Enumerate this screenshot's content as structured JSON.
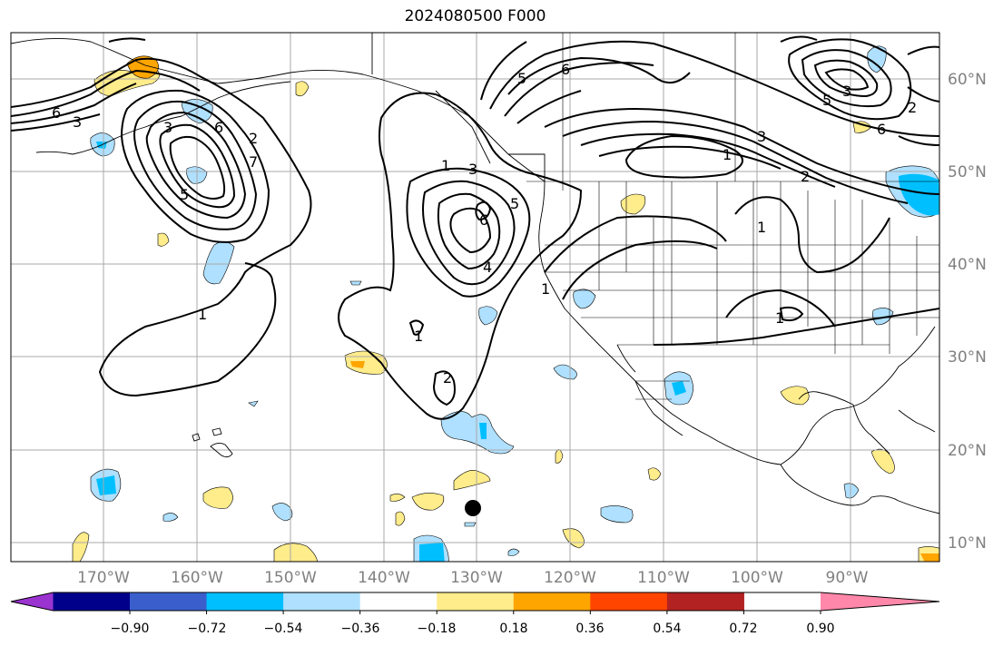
{
  "title": "2024080500 F000",
  "lon_labels": [
    "170°W",
    "160°W",
    "150°W",
    "140°W",
    "130°W",
    "120°W",
    "110°W",
    "100°W",
    "90°W"
  ],
  "lat_labels": [
    "60°N",
    "50°N",
    "40°N",
    "30°N",
    "20°N",
    "10°N"
  ],
  "colorbar": {
    "colors": [
      "#9a33d0",
      "#00008b",
      "#3a5fcd",
      "#00bfff",
      "#afe0ff",
      "#ffffff",
      "#ffec8b",
      "#ffa500",
      "#ff4500",
      "#b22222",
      "#ff88aa"
    ],
    "tick_labels": [
      "−0.90",
      "−0.72",
      "−0.54",
      "−0.36",
      "−0.18",
      "0.18",
      "0.36",
      "0.54",
      "0.72",
      "0.90"
    ]
  },
  "contour_labels": [
    "6",
    "3",
    "3",
    "6",
    "2",
    "7",
    "5",
    "1",
    "1",
    "3",
    "6",
    "4",
    "5",
    "1",
    "2",
    "1",
    "1",
    "1",
    "5",
    "6",
    "5",
    "3",
    "6",
    "3",
    "2",
    "1",
    "2"
  ],
  "marker": {
    "name": "storm-center-marker",
    "color": "#000000"
  }
}
